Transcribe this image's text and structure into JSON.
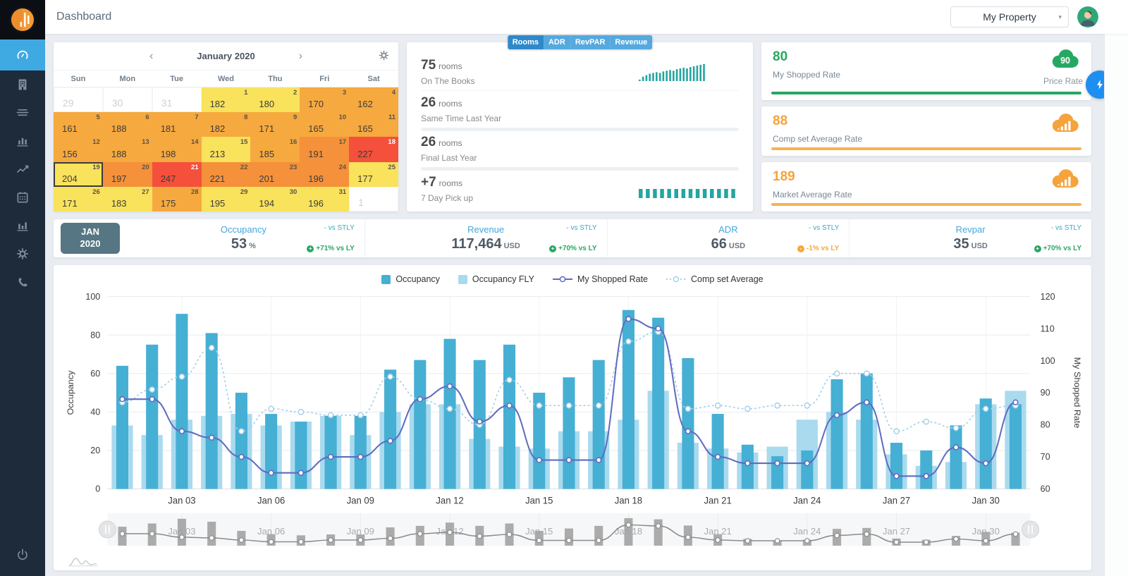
{
  "app": {
    "title": "Dashboard",
    "property_selector": "My Property"
  },
  "sidebar": {
    "items": [
      {
        "id": "dashboard",
        "icon": "gauge",
        "active": true
      },
      {
        "id": "property",
        "icon": "building",
        "active": false
      },
      {
        "id": "rows",
        "icon": "rows",
        "active": false
      },
      {
        "id": "reports",
        "icon": "bar-chart",
        "active": false
      },
      {
        "id": "trends",
        "icon": "line-chart",
        "active": false
      },
      {
        "id": "calendar",
        "icon": "calendar",
        "active": false
      },
      {
        "id": "statistics",
        "icon": "bar-chart-2",
        "active": false
      },
      {
        "id": "settings",
        "icon": "gear",
        "active": false
      },
      {
        "id": "support",
        "icon": "phone",
        "active": false
      },
      {
        "id": "logout",
        "icon": "power",
        "active": false,
        "bottom": true
      }
    ]
  },
  "calendar": {
    "title": "January 2020",
    "prev_arrow": "‹",
    "next_arrow": "›",
    "weekdays": [
      "Sun",
      "Mon",
      "Tue",
      "Wed",
      "Thu",
      "Fri",
      "Sat"
    ],
    "cells": [
      {
        "day": 29,
        "muted": true
      },
      {
        "day": 30,
        "muted": true
      },
      {
        "day": 31,
        "muted": true
      },
      {
        "day": 1,
        "rate": 182,
        "tone": "yellow"
      },
      {
        "day": 2,
        "rate": 180,
        "tone": "yellow"
      },
      {
        "day": 3,
        "rate": 170,
        "tone": "orange"
      },
      {
        "day": 4,
        "rate": 162,
        "tone": "orange"
      },
      {
        "day": 5,
        "rate": 161,
        "tone": "orange"
      },
      {
        "day": 6,
        "rate": 188,
        "tone": "orange"
      },
      {
        "day": 7,
        "rate": 181,
        "tone": "orange"
      },
      {
        "day": 8,
        "rate": 182,
        "tone": "orange"
      },
      {
        "day": 9,
        "rate": 171,
        "tone": "orange"
      },
      {
        "day": 10,
        "rate": 165,
        "tone": "orange"
      },
      {
        "day": 11,
        "rate": 165,
        "tone": "orange"
      },
      {
        "day": 12,
        "rate": 156,
        "tone": "orange"
      },
      {
        "day": 13,
        "rate": 188,
        "tone": "orange"
      },
      {
        "day": 14,
        "rate": 198,
        "tone": "orange"
      },
      {
        "day": 15,
        "rate": 213,
        "tone": "yellow"
      },
      {
        "day": 16,
        "rate": 185,
        "tone": "orange"
      },
      {
        "day": 17,
        "rate": 191,
        "tone": "deep"
      },
      {
        "day": 18,
        "rate": 227,
        "tone": "red"
      },
      {
        "day": 19,
        "rate": 204,
        "tone": "yellow",
        "selected": true
      },
      {
        "day": 20,
        "rate": 197,
        "tone": "deep"
      },
      {
        "day": 21,
        "rate": 247,
        "tone": "red"
      },
      {
        "day": 22,
        "rate": 221,
        "tone": "deep"
      },
      {
        "day": 23,
        "rate": 201,
        "tone": "deep"
      },
      {
        "day": 24,
        "rate": 196,
        "tone": "deep"
      },
      {
        "day": 25,
        "rate": 177,
        "tone": "yellow"
      },
      {
        "day": 26,
        "rate": 171,
        "tone": "yellow"
      },
      {
        "day": 27,
        "rate": 183,
        "tone": "yellow"
      },
      {
        "day": 28,
        "rate": 175,
        "tone": "orange"
      },
      {
        "day": 29,
        "rate": 195,
        "tone": "yellow"
      },
      {
        "day": 30,
        "rate": 194,
        "tone": "yellow"
      },
      {
        "day": 31,
        "rate": 196,
        "tone": "yellow"
      },
      {
        "day": 1,
        "muted": true
      }
    ]
  },
  "stats": {
    "tabs": [
      "Rooms",
      "ADR",
      "RevPAR",
      "Revenue"
    ],
    "active_tab": "Rooms",
    "sparkline_color": "#25a5a0",
    "rows": [
      {
        "value": "75",
        "unit": "rooms",
        "label": "On The Books",
        "sparkline": [
          2,
          6,
          8,
          10,
          11,
          12,
          11,
          13,
          14,
          15,
          14,
          16,
          17,
          18,
          17,
          19,
          20,
          21,
          22,
          23
        ]
      },
      {
        "value": "26",
        "unit": "rooms",
        "label": "Same Time Last Year",
        "sparkline": []
      },
      {
        "value": "26",
        "unit": "rooms",
        "label": "Final Last Year",
        "sparkline": []
      },
      {
        "value": "+7",
        "unit": "rooms",
        "label": "7 Day Pick up",
        "sparkline": [
          10,
          10,
          10,
          10,
          10,
          10,
          10,
          10,
          10,
          10,
          10,
          10,
          10,
          10
        ]
      }
    ]
  },
  "rate_cards": [
    {
      "value": "80",
      "label": "My Shopped Rate",
      "value_color": "#27a862",
      "icon": "cloud-badge",
      "icon_color": "#27a862",
      "badge": "90",
      "caption": "Price Rate",
      "bar_color": "#27a862"
    },
    {
      "value": "88",
      "label": "Comp set Average Rate",
      "value_color": "#f5a33c",
      "icon": "cloud-bars",
      "icon_color": "#f5a33c",
      "bar_color": "#f6b44f"
    },
    {
      "value": "189",
      "label": "Market Average Rate",
      "value_color": "#f5a33c",
      "icon": "cloud-bars",
      "icon_color": "#f5a33c",
      "bar_color": "#f6b44f"
    }
  ],
  "quick_action": {
    "icon": "lightning"
  },
  "kpis": {
    "period": {
      "line1": "JAN",
      "line2": "2020"
    },
    "items": [
      {
        "id": "occupancy",
        "label": "Occupancy",
        "value": "53",
        "unit": "%",
        "vs_stly": "- vs STLY",
        "vs_ly": "+71% vs LY",
        "trend": "up"
      },
      {
        "id": "revenue",
        "label": "Revenue",
        "value": "117,464",
        "unit": "USD",
        "vs_stly": "- vs STLY",
        "vs_ly": "+70% vs LY",
        "trend": "up"
      },
      {
        "id": "adr",
        "label": "ADR",
        "value": "66",
        "unit": "USD",
        "vs_stly": "- vs STLY",
        "vs_ly": "-1% vs LY",
        "trend": "down"
      },
      {
        "id": "revpar",
        "label": "Revpar",
        "value": "35",
        "unit": "USD",
        "vs_stly": "- vs STLY",
        "vs_ly": "+70% vs LY",
        "trend": "up"
      }
    ],
    "trend_colors": {
      "up": "#27a862",
      "down": "#f5a83c"
    }
  },
  "chart_data": {
    "type": "bar+line combo with navigator",
    "days": 31,
    "month": "Jan 2020",
    "xticks": [
      "Jan 03",
      "Jan 06",
      "Jan 09",
      "Jan 12",
      "Jan 15",
      "Jan 18",
      "Jan 21",
      "Jan 24",
      "Jan 27",
      "Jan 30"
    ],
    "tick_day_index": [
      2,
      5,
      8,
      11,
      14,
      17,
      20,
      23,
      26,
      29
    ],
    "left_axis": {
      "label": "Occupancy",
      "min": 0,
      "max": 100,
      "ticks": [
        0,
        20,
        40,
        60,
        80,
        100
      ]
    },
    "right_axis": {
      "label": "My Shopped Rate",
      "min": 60,
      "max": 120,
      "ticks": [
        60,
        70,
        80,
        90,
        100,
        110,
        120
      ]
    },
    "grid": true,
    "legend_position": "top-center",
    "series": [
      {
        "name": "Occupancy",
        "type": "bar",
        "axis": "left",
        "color": "#46afd4",
        "values": [
          64,
          75,
          91,
          81,
          50,
          39,
          35,
          38,
          38,
          62,
          67,
          78,
          67,
          75,
          50,
          58,
          67,
          93,
          89,
          68,
          39,
          23,
          17,
          20,
          57,
          60,
          24,
          20,
          33,
          47,
          44
        ]
      },
      {
        "name": "Occupancy FLY",
        "type": "bar",
        "axis": "left",
        "color": "#a9daee",
        "values": [
          33,
          28,
          36,
          38,
          39,
          33,
          35,
          38,
          28,
          40,
          44,
          44,
          26,
          22,
          21,
          30,
          30,
          36,
          51,
          24,
          21,
          19,
          22,
          36,
          40,
          36,
          18,
          12,
          14,
          44,
          51
        ]
      },
      {
        "name": "My Shopped Rate",
        "type": "line",
        "axis": "right",
        "color": "#5f6cbf",
        "values": [
          88,
          88,
          78,
          76,
          70,
          65,
          65,
          70,
          70,
          75,
          88,
          92,
          81,
          86,
          69,
          69,
          69,
          113,
          110,
          78,
          70,
          68,
          68,
          68,
          83,
          87,
          64,
          64,
          73,
          68,
          87
        ]
      },
      {
        "name": "Comp set Average",
        "type": "dotted-line",
        "axis": "right",
        "color": "#a3cfe8",
        "values": [
          87,
          91,
          95,
          104,
          78,
          85,
          84,
          83,
          83,
          95,
          88,
          85,
          80,
          94,
          86,
          86,
          86,
          106,
          109,
          85,
          86,
          85,
          86,
          86,
          96,
          96,
          78,
          81,
          79,
          85,
          86
        ]
      }
    ],
    "navigator": {
      "bar_color": "#ababab",
      "line_color": "#8c8c8c",
      "labels": [
        "Jan 03",
        "Jan 06",
        "Jan 09",
        "Jan 12",
        "Jan 15",
        "Jan 18",
        "Jan 21",
        "Jan 24",
        "Jan 27",
        "Jan 30"
      ]
    }
  }
}
